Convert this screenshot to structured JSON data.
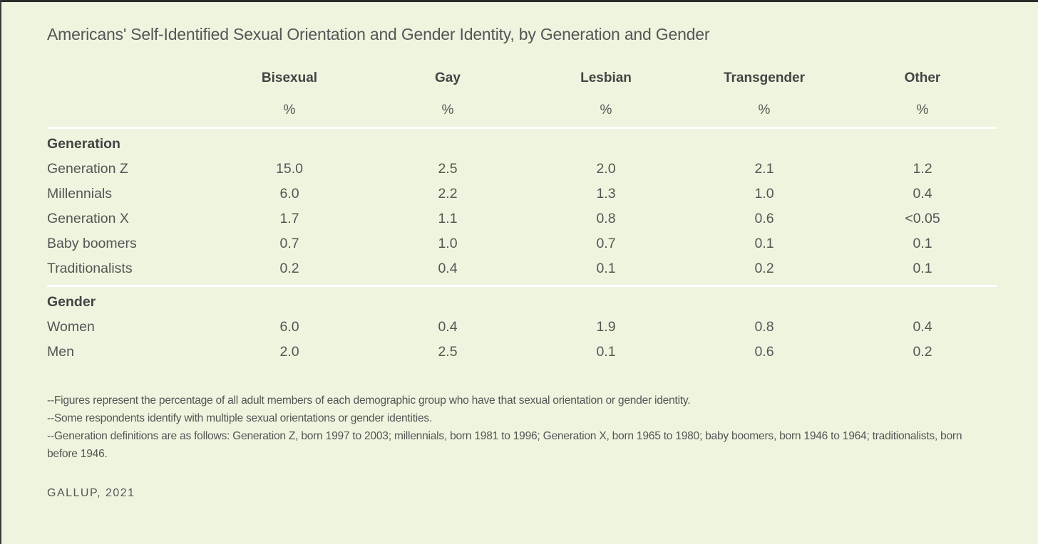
{
  "chart_data": {
    "type": "table",
    "title": "Americans' Self-Identified Sexual Orientation and Gender Identity, by Generation and Gender",
    "columns": [
      "Bisexual",
      "Gay",
      "Lesbian",
      "Transgender",
      "Other"
    ],
    "units": [
      "%",
      "%",
      "%",
      "%",
      "%"
    ],
    "groups": [
      {
        "name": "Generation",
        "rows": [
          {
            "label": "Generation Z",
            "values": [
              "15.0",
              "2.5",
              "2.0",
              "2.1",
              "1.2"
            ]
          },
          {
            "label": "Millennials",
            "values": [
              "6.0",
              "2.2",
              "1.3",
              "1.0",
              "0.4"
            ]
          },
          {
            "label": "Generation X",
            "values": [
              "1.7",
              "1.1",
              "0.8",
              "0.6",
              "<0.05"
            ]
          },
          {
            "label": "Baby boomers",
            "values": [
              "0.7",
              "1.0",
              "0.7",
              "0.1",
              "0.1"
            ]
          },
          {
            "label": "Traditionalists",
            "values": [
              "0.2",
              "0.4",
              "0.1",
              "0.2",
              "0.1"
            ]
          }
        ]
      },
      {
        "name": "Gender",
        "rows": [
          {
            "label": "Women",
            "values": [
              "6.0",
              "0.4",
              "1.9",
              "0.8",
              "0.4"
            ]
          },
          {
            "label": "Men",
            "values": [
              "2.0",
              "2.5",
              "0.1",
              "0.6",
              "0.2"
            ]
          }
        ]
      }
    ],
    "notes": [
      "--Figures represent the percentage of all adult members of each demographic group who have that sexual orientation or gender identity.",
      "--Some respondents identify with multiple sexual orientations or gender identities.",
      "--Generation definitions are as follows: Generation Z, born 1997 to 2003; millennials, born 1981 to 1996; Generation X, born 1965 to 1980; baby boomers, born 1946 to 1964; traditionalists, born before 1946."
    ],
    "source": "GALLUP, 2021"
  },
  "colors": {
    "background": "#eef5df",
    "text": "#555555",
    "rule": "#ffffff"
  }
}
